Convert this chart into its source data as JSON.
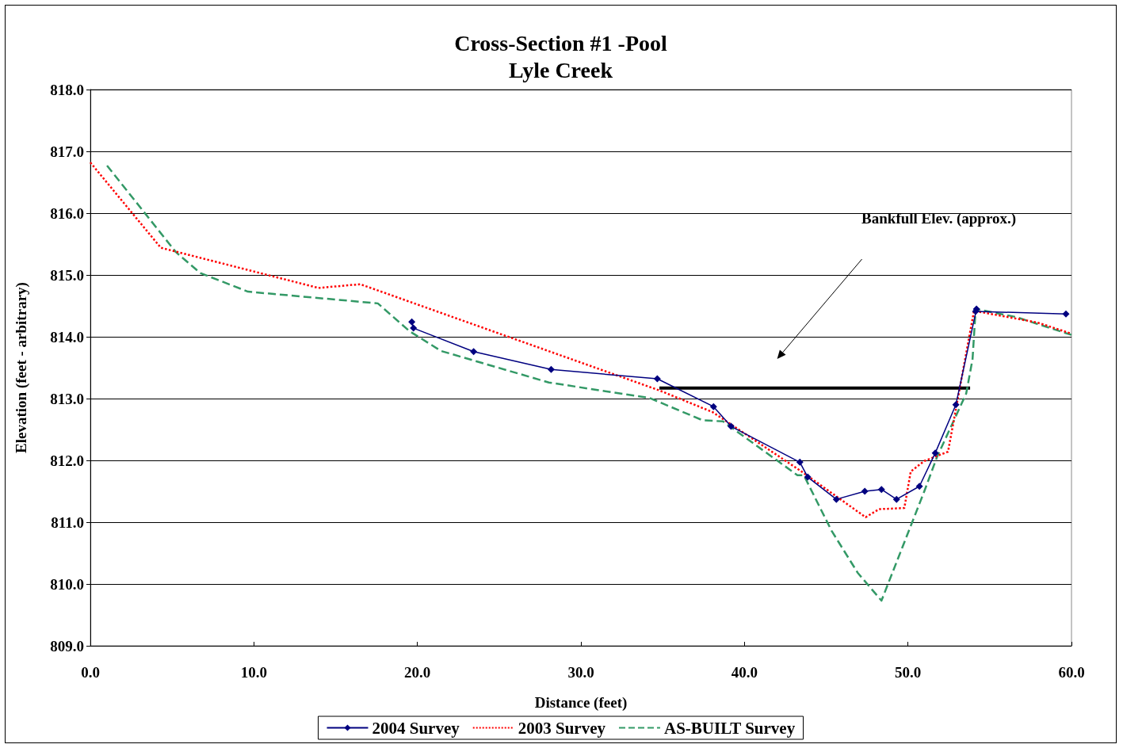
{
  "chart_data": {
    "type": "line",
    "title": "Cross-Section #1 -Pool",
    "subtitle": "Lyle Creek",
    "xlabel": "Distance (feet)",
    "ylabel": "Elevation (feet - arbitrary)",
    "xlim": [
      0,
      60
    ],
    "ylim": [
      809,
      818
    ],
    "xticks": [
      {
        "value": 0,
        "label": "0.0"
      },
      {
        "value": 10,
        "label": "10.0"
      },
      {
        "value": 20,
        "label": "20.0"
      },
      {
        "value": 30,
        "label": "30.0"
      },
      {
        "value": 40,
        "label": "40.0"
      },
      {
        "value": 50,
        "label": "50.0"
      },
      {
        "value": 60,
        "label": "60.0"
      }
    ],
    "yticks": [
      {
        "value": 809,
        "label": "809.0"
      },
      {
        "value": 810,
        "label": "810.0"
      },
      {
        "value": 811,
        "label": "811.0"
      },
      {
        "value": 812,
        "label": "812.0"
      },
      {
        "value": 813,
        "label": "813.0"
      },
      {
        "value": 814,
        "label": "814.0"
      },
      {
        "value": 815,
        "label": "815.0"
      },
      {
        "value": 816,
        "label": "816.0"
      },
      {
        "value": 817,
        "label": "817.0"
      },
      {
        "value": 818,
        "label": "818.0"
      }
    ],
    "grid": "y",
    "legend": "bottom",
    "annotations": [
      "Bankfull Elev. (approx.)"
    ],
    "series": [
      {
        "name": "2004 Survey",
        "color": "#000080",
        "marker": "diamond",
        "line_style": "solid",
        "x": [
          19.66,
          19.76,
          23.44,
          28.18,
          34.67,
          38.11,
          39.18,
          43.39,
          43.87,
          45.62,
          47.36,
          48.38,
          49.3,
          50.7,
          51.67,
          52.93,
          54.19,
          54.14,
          59.66
        ],
        "values": [
          814.24,
          814.14,
          813.76,
          813.47,
          813.32,
          812.87,
          812.55,
          811.97,
          811.73,
          811.37,
          811.5,
          811.53,
          811.37,
          811.58,
          812.12,
          812.9,
          814.45,
          814.41,
          814.37
        ]
      },
      {
        "name": "2003 Survey",
        "color": "#ff0000",
        "marker": "none",
        "line_style": "dotted",
        "x": [
          0,
          4.31,
          13.95,
          16.51,
          34.82,
          38.06,
          43.49,
          47.41,
          48.23,
          49.78,
          50.17,
          51.0,
          52.45,
          54.04,
          57.92,
          60
        ],
        "values": [
          816.82,
          815.44,
          814.79,
          814.85,
          813.13,
          812.78,
          811.82,
          811.08,
          811.21,
          811.23,
          811.82,
          811.99,
          812.14,
          814.42,
          814.23,
          814.05
        ]
      },
      {
        "name": "AS-BUILT Survey",
        "color": "#339966",
        "marker": "none",
        "line_style": "dashed",
        "x": [
          1.02,
          5.23,
          6.73,
          9.64,
          17.58,
          19.52,
          21.45,
          28.04,
          34.19,
          37.43,
          38.69,
          43.24,
          43.63,
          45.33,
          46.93,
          48.38,
          51.0,
          51.77,
          53.56,
          53.95,
          54.14,
          56.6,
          60
        ],
        "values": [
          816.77,
          815.37,
          815.03,
          814.73,
          814.54,
          814.09,
          813.77,
          813.26,
          813.01,
          812.65,
          812.63,
          811.76,
          811.76,
          810.86,
          810.18,
          809.73,
          811.5,
          812.05,
          813.08,
          813.64,
          814.45,
          814.32,
          814.03
        ]
      },
      {
        "color": "#000000",
        "marker": "none",
        "line_style": "solid",
        "x": [
          34.8,
          53.8
        ],
        "values": [
          813.17,
          813.17
        ]
      }
    ]
  }
}
